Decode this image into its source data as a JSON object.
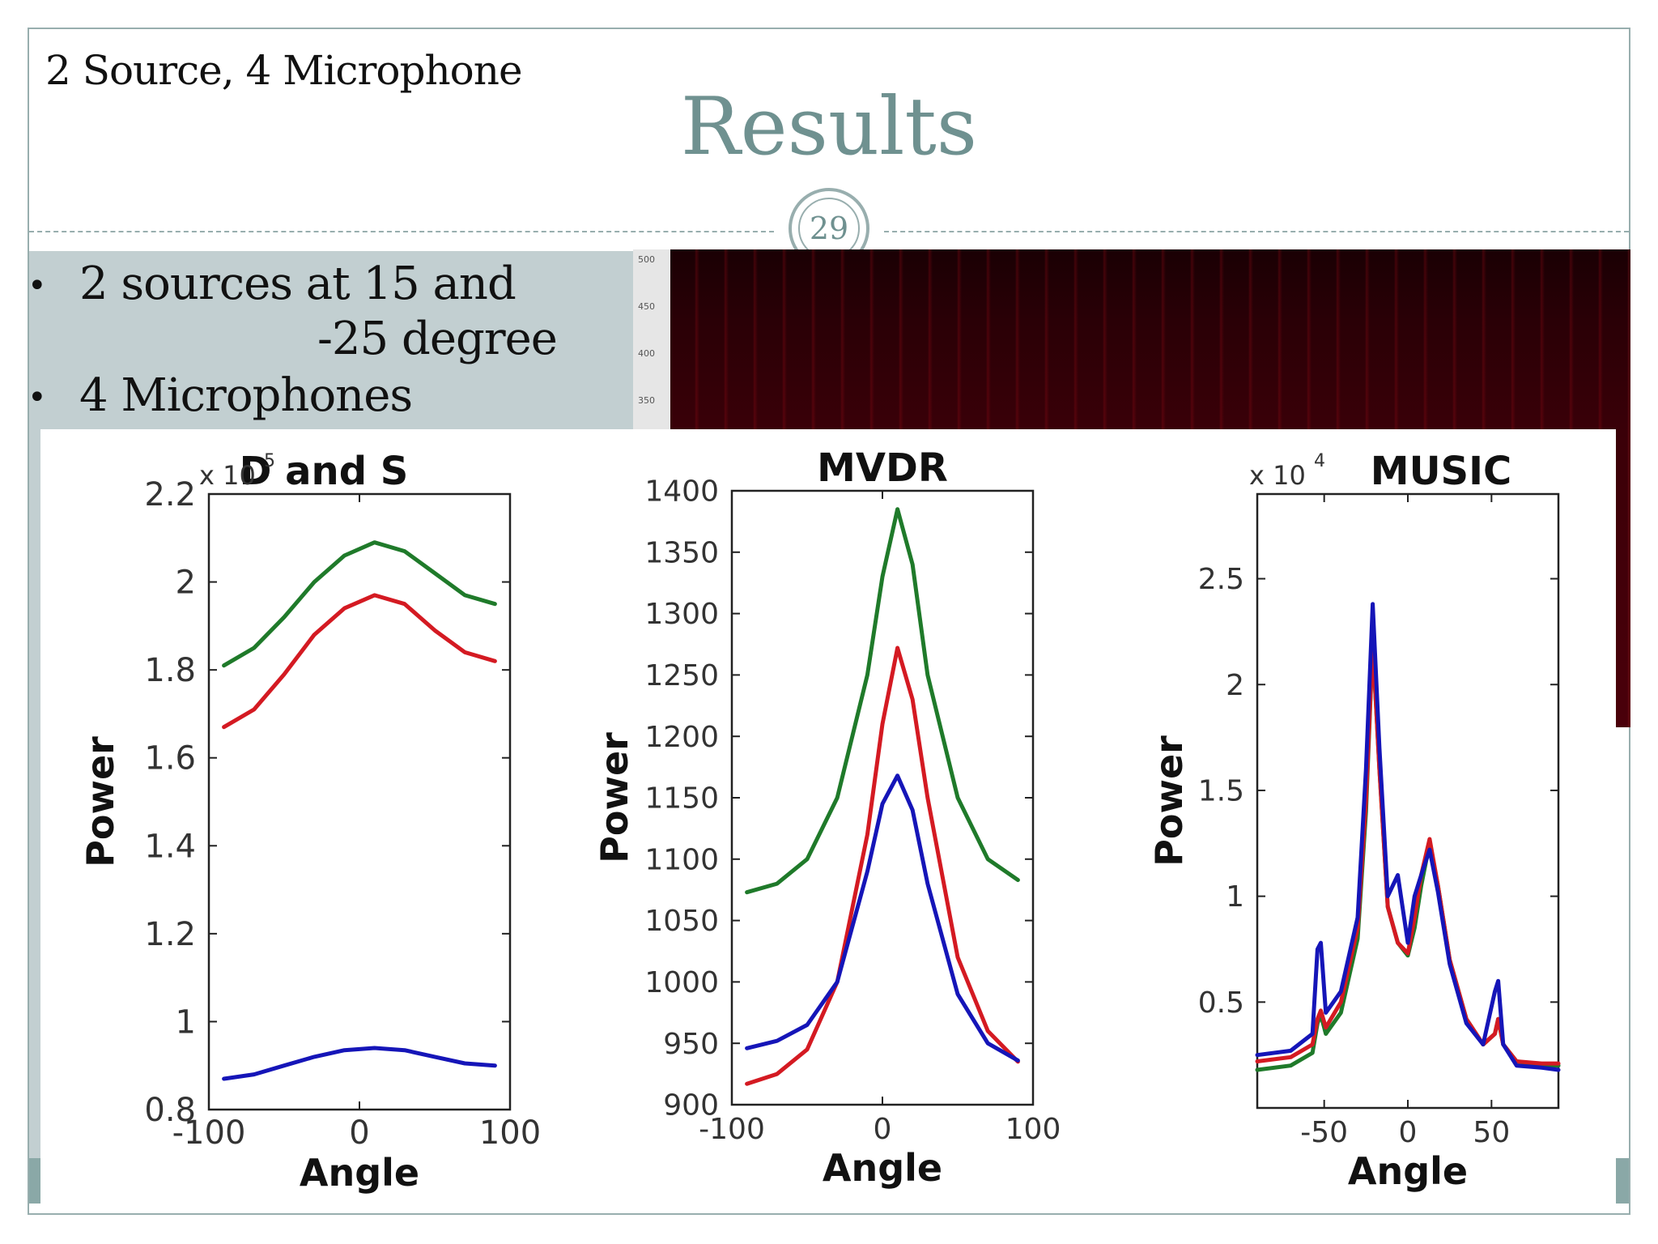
{
  "slide": {
    "subtitle": "2 Source, 4 Microphone",
    "title": "Results",
    "number": "29",
    "bullets": [
      {
        "line1": "2 sources at 15 and",
        "line2": "-25 degree"
      },
      {
        "line1": "4 Microphones"
      }
    ],
    "spectrogram_ticks": [
      "500",
      "450",
      "400",
      "350"
    ]
  },
  "colors": {
    "accent": "#6f9190",
    "panel": "#c2cfd1",
    "series_green": "#1f7a2a",
    "series_red": "#d41a22",
    "series_blue": "#1515b8"
  },
  "chart_data": [
    {
      "type": "line",
      "title": "D and S",
      "exponent_label": "x 10",
      "exponent_power": "5",
      "xlabel": "Angle",
      "ylabel": "Power",
      "xlim": [
        -100,
        100
      ],
      "ylim": [
        0.8,
        2.2
      ],
      "xticks": [
        "-100",
        "0",
        "100"
      ],
      "yticks": [
        "0.8",
        "1",
        "1.2",
        "1.4",
        "1.6",
        "1.8",
        "2",
        "2.2"
      ],
      "x": [
        -90,
        -70,
        -50,
        -30,
        -10,
        10,
        30,
        50,
        70,
        90
      ],
      "series": [
        {
          "color": "green",
          "values": [
            1.81,
            1.85,
            1.92,
            2.0,
            2.06,
            2.09,
            2.07,
            2.02,
            1.97,
            1.95
          ]
        },
        {
          "color": "red",
          "values": [
            1.67,
            1.71,
            1.79,
            1.88,
            1.94,
            1.97,
            1.95,
            1.89,
            1.84,
            1.82
          ]
        },
        {
          "color": "blue",
          "values": [
            0.87,
            0.88,
            0.9,
            0.92,
            0.935,
            0.94,
            0.935,
            0.92,
            0.905,
            0.9
          ]
        }
      ]
    },
    {
      "type": "line",
      "title": "MVDR",
      "xlabel": "Angle",
      "ylabel": "Power",
      "xlim": [
        -100,
        100
      ],
      "ylim": [
        900,
        1400
      ],
      "xticks": [
        "-100",
        "0",
        "100"
      ],
      "yticks": [
        "900",
        "950",
        "1000",
        "1050",
        "1100",
        "1150",
        "1200",
        "1250",
        "1300",
        "1350",
        "1400"
      ],
      "x": [
        -90,
        -70,
        -50,
        -30,
        -10,
        0,
        10,
        20,
        30,
        50,
        70,
        90
      ],
      "series": [
        {
          "color": "green",
          "values": [
            1073,
            1080,
            1100,
            1150,
            1250,
            1330,
            1385,
            1340,
            1250,
            1150,
            1100,
            1083
          ]
        },
        {
          "color": "red",
          "values": [
            917,
            925,
            945,
            1000,
            1120,
            1210,
            1272,
            1230,
            1150,
            1020,
            960,
            935
          ]
        },
        {
          "color": "blue",
          "values": [
            946,
            952,
            965,
            1000,
            1090,
            1145,
            1168,
            1140,
            1080,
            990,
            950,
            936
          ]
        }
      ]
    },
    {
      "type": "line",
      "title": "MUSIC",
      "exponent_label": "x 10",
      "exponent_power": "4",
      "xlabel": "Angle",
      "ylabel": "Power",
      "xlim": [
        -90,
        90
      ],
      "ylim": [
        0,
        2.9
      ],
      "xticks": [
        "-50",
        "0",
        "50"
      ],
      "yticks": [
        "0.5",
        "1",
        "1.5",
        "2",
        "2.5"
      ],
      "x": [
        -90,
        -70,
        -57,
        -54,
        -52,
        -49,
        -40,
        -30,
        -25,
        -21,
        -17,
        -12,
        -6,
        0,
        4,
        8,
        13,
        18,
        25,
        35,
        45,
        52,
        54,
        57,
        65,
        80,
        90
      ],
      "series": [
        {
          "color": "green",
          "values": [
            0.18,
            0.2,
            0.26,
            0.4,
            0.44,
            0.35,
            0.45,
            0.8,
            1.4,
            2.2,
            1.6,
            0.95,
            0.78,
            0.72,
            0.85,
            1.05,
            1.25,
            1.05,
            0.7,
            0.42,
            0.3,
            0.35,
            0.42,
            0.3,
            0.22,
            0.2,
            0.2
          ]
        },
        {
          "color": "red",
          "values": [
            0.22,
            0.24,
            0.3,
            0.42,
            0.46,
            0.38,
            0.5,
            0.85,
            1.45,
            2.2,
            1.6,
            0.95,
            0.78,
            0.73,
            0.9,
            1.1,
            1.27,
            1.05,
            0.7,
            0.42,
            0.3,
            0.35,
            0.42,
            0.3,
            0.22,
            0.21,
            0.21
          ]
        },
        {
          "color": "blue",
          "values": [
            0.25,
            0.27,
            0.35,
            0.75,
            0.78,
            0.45,
            0.55,
            0.9,
            1.6,
            2.38,
            1.7,
            1.0,
            1.1,
            0.78,
            1.0,
            1.1,
            1.22,
            1.02,
            0.68,
            0.4,
            0.3,
            0.55,
            0.6,
            0.3,
            0.2,
            0.19,
            0.18
          ]
        }
      ]
    }
  ]
}
